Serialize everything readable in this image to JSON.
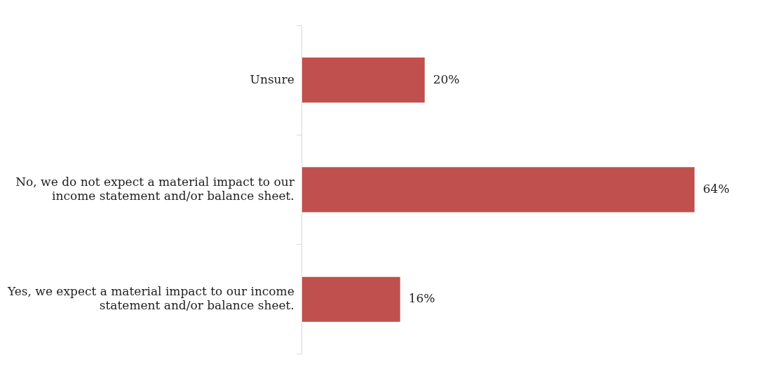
{
  "chart_data": {
    "type": "bar",
    "orientation": "horizontal",
    "categories": [
      "Unsure",
      "No, we do not expect a material impact to our income statement and/or balance sheet.",
      "Yes, we expect a material impact to our income statement and/or balance sheet."
    ],
    "values": [
      20,
      64,
      16
    ],
    "color": "#c0504d",
    "value_labels": [
      "20%",
      "64%",
      "16%"
    ],
    "legend": false
  }
}
